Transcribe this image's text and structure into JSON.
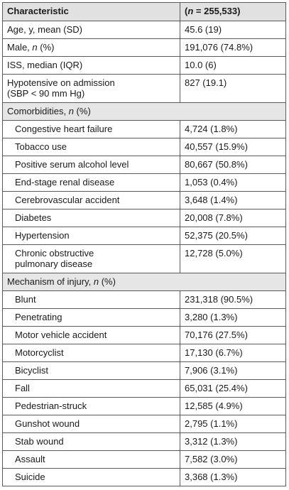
{
  "header": {
    "col1": "Characteristic",
    "col2_pre": "(",
    "col2_n": "n",
    "col2_post": " = 255,533)"
  },
  "general": [
    {
      "label": "Age, y, mean (SD)",
      "value": "45.6 (19)"
    },
    {
      "label_pre": "Male, ",
      "label_n": "n",
      "label_post": " (%)",
      "value": "191,076 (74.8%)"
    },
    {
      "label": "ISS, median (IQR)",
      "value": "10.0 (6)"
    },
    {
      "label_line1": "Hypotensive on admission",
      "label_line2": "(SBP < 90 mm Hg)",
      "value": "827 (19.1)"
    }
  ],
  "comorbidities": {
    "title_pre": "Comorbidities, ",
    "title_n": "n",
    "title_post": " (%)",
    "rows": [
      {
        "label": "Congestive heart failure",
        "value": "4,724 (1.8%)"
      },
      {
        "label": "Tobacco use",
        "value": "40,557 (15.9%)"
      },
      {
        "label": "Positive serum alcohol level",
        "value": "80,667 (50.8%)"
      },
      {
        "label": "End-stage renal disease",
        "value": "1,053 (0.4%)"
      },
      {
        "label": "Cerebrovascular accident",
        "value": "3,648 (1.4%)"
      },
      {
        "label": "Diabetes",
        "value": "20,008 (7.8%)"
      },
      {
        "label": "Hypertension",
        "value": "52,375 (20.5%)"
      },
      {
        "label_line1": "Chronic obstructive",
        "label_line2": "pulmonary disease",
        "value": "12,728 (5.0%)"
      }
    ]
  },
  "mechanism": {
    "title_pre": "Mechanism of injury, ",
    "title_n": "n",
    "title_post": " (%)",
    "rows": [
      {
        "label": "Blunt",
        "value": "231,318 (90.5%)"
      },
      {
        "label": "Penetrating",
        "value": "3,280 (1.3%)"
      },
      {
        "label": "Motor vehicle accident",
        "value": "70,176 (27.5%)"
      },
      {
        "label": "Motorcyclist",
        "value": "17,130 (6.7%)"
      },
      {
        "label": "Bicyclist",
        "value": "7,906 (3.1%)"
      },
      {
        "label": "Fall",
        "value": "65,031 (25.4%)"
      },
      {
        "label": "Pedestrian-struck",
        "value": "12,585 (4.9%)"
      },
      {
        "label": "Gunshot wound",
        "value": "2,795 (1.1%)"
      },
      {
        "label": "Stab wound",
        "value": "3,312 (1.3%)"
      },
      {
        "label": "Assault",
        "value": "7,582 (3.0%)"
      },
      {
        "label": "Suicide",
        "value": "3,368 (1.3%)"
      }
    ]
  }
}
